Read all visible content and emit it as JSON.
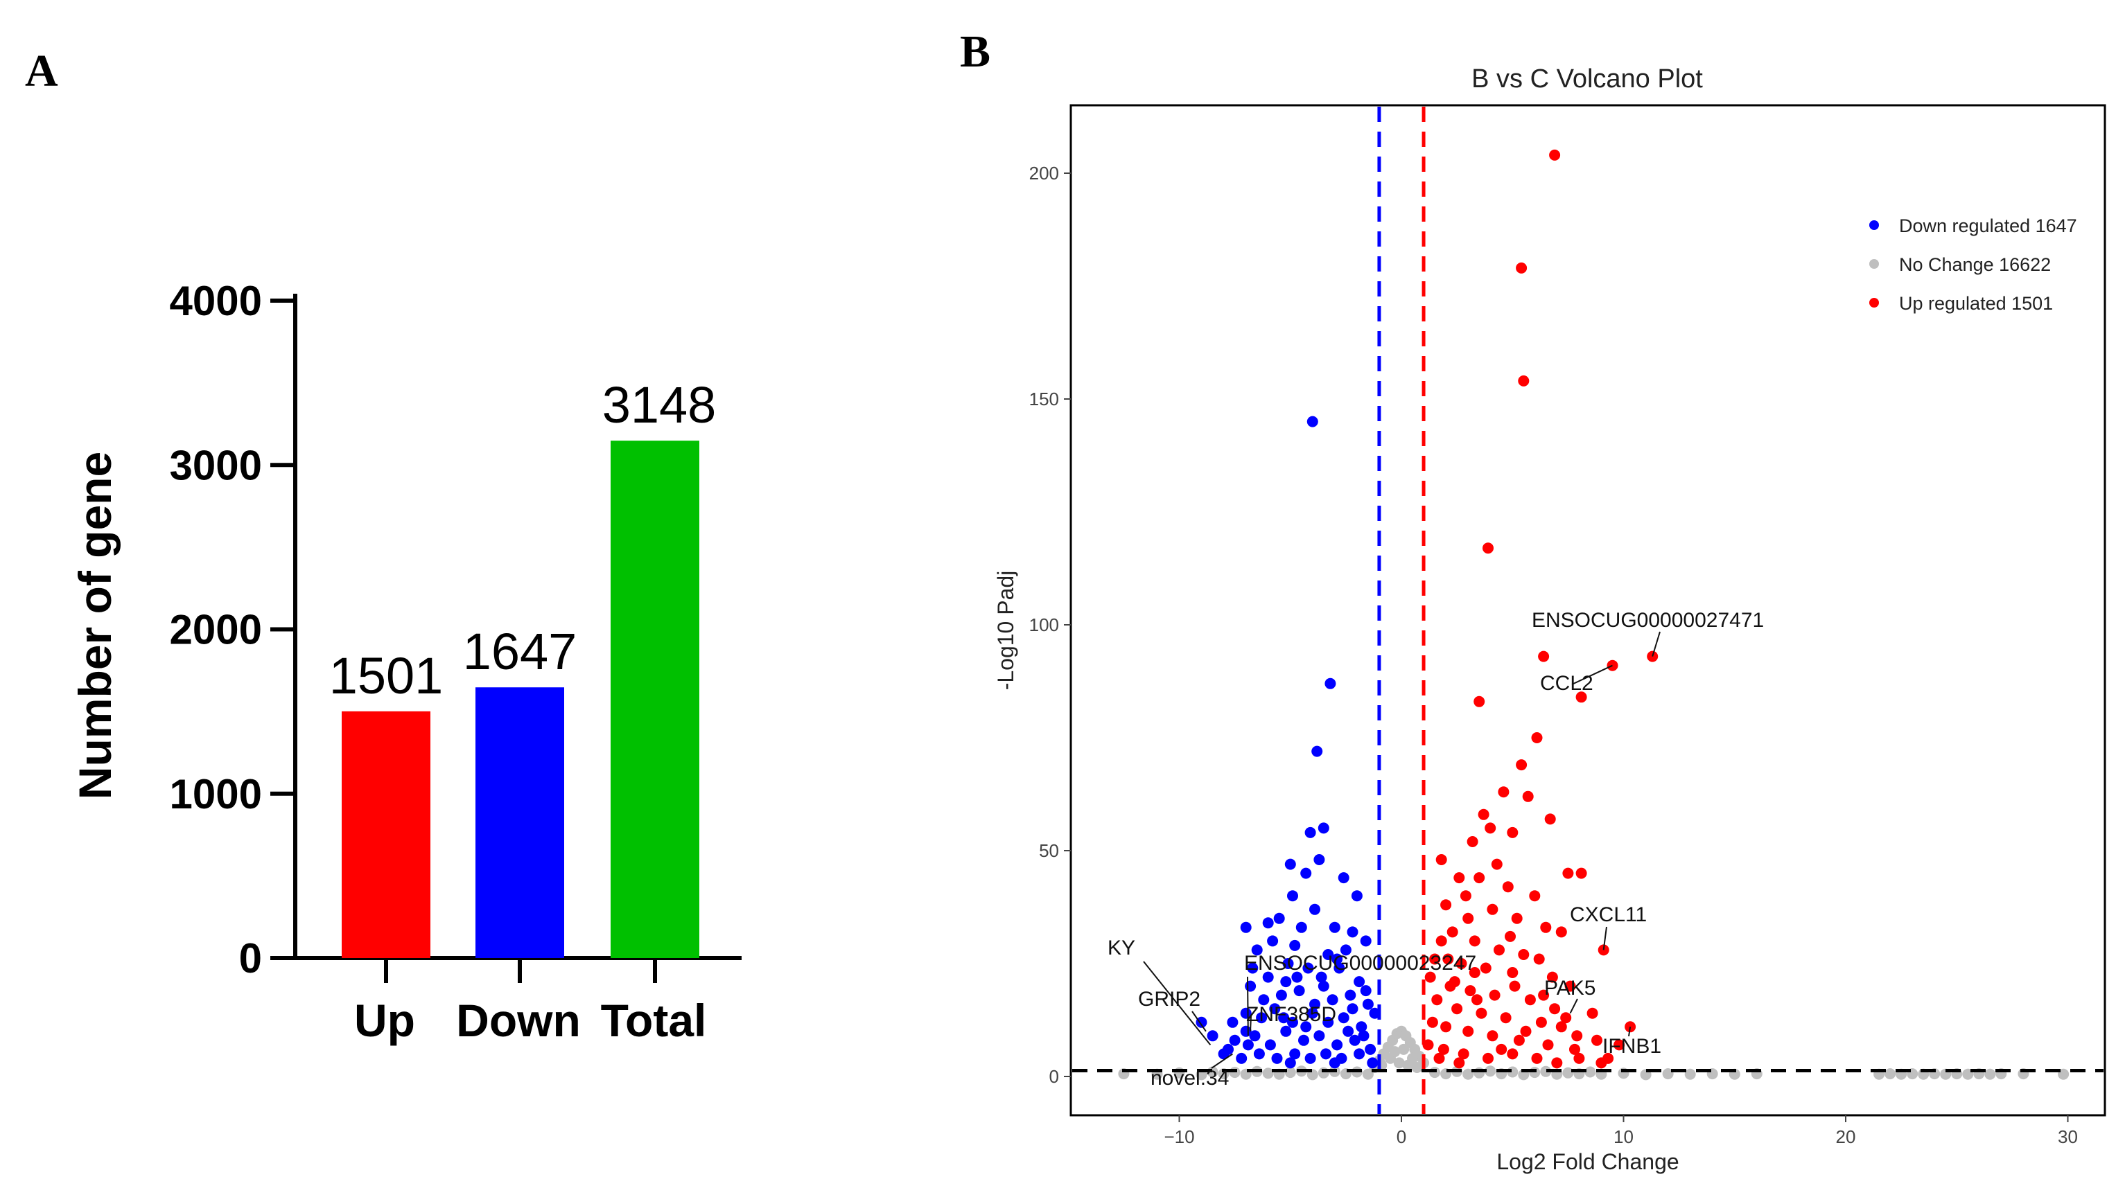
{
  "chart_data": [
    {
      "panel": "A",
      "type": "bar",
      "categories": [
        "Up",
        "Down",
        "Total"
      ],
      "values": [
        1501,
        1647,
        3148
      ],
      "data_labels": [
        "1501",
        "1647",
        "3148"
      ],
      "colors": [
        "#ff0000",
        "#0000ff",
        "#00c000"
      ],
      "title": "",
      "xlabel": "",
      "ylabel": "Number of gene",
      "ylim": [
        0,
        4000
      ],
      "yticks": [
        0,
        1000,
        2000,
        3000,
        4000
      ],
      "ytick_labels": [
        "0",
        "1000",
        "2000",
        "3000",
        "4000"
      ],
      "grid": false
    },
    {
      "panel": "B",
      "type": "scatter",
      "title": "B vs C Volcano Plot",
      "xlabel": "Log2 Fold Change",
      "ylabel": "-Log10 Padj",
      "xlim": [
        -14,
        33
      ],
      "ylim": [
        -10,
        215
      ],
      "xticks": [
        -10,
        0,
        10,
        20,
        30
      ],
      "xtick_labels": [
        "-10",
        "0",
        "10",
        "20",
        "30"
      ],
      "yticks": [
        0,
        50,
        100,
        150,
        200
      ],
      "ytick_labels": [
        "0",
        "50",
        "100",
        "150",
        "200"
      ],
      "thresholds": {
        "log2fc_down": -1,
        "log2fc_up": 1,
        "neg_log10_padj": 1.3
      },
      "threshold_colors": {
        "down": "#0000ff",
        "up": "#ff0000",
        "padj": "#000000"
      },
      "legend_position": "top-right",
      "series": [
        {
          "name": "Down regulated 1647",
          "color": "#0000ff",
          "points": [
            [
              -4,
              145
            ],
            [
              -3.2,
              87
            ],
            [
              -3.8,
              72
            ],
            [
              -3.5,
              55
            ],
            [
              -4.1,
              54
            ],
            [
              -5,
              47
            ],
            [
              -4.3,
              45
            ],
            [
              -3.7,
              48
            ],
            [
              -2.6,
              44
            ],
            [
              -4.9,
              40
            ],
            [
              -2,
              40
            ],
            [
              -3.9,
              37
            ],
            [
              -6,
              34
            ],
            [
              -5.5,
              35
            ],
            [
              -3,
              33
            ],
            [
              -2.2,
              32
            ],
            [
              -4.5,
              33
            ],
            [
              -7,
              33
            ],
            [
              -6.5,
              28
            ],
            [
              -5.8,
              30
            ],
            [
              -4.8,
              29
            ],
            [
              -3.3,
              27
            ],
            [
              -2.5,
              28
            ],
            [
              -1.6,
              30
            ],
            [
              -6,
              22
            ],
            [
              -5.1,
              25
            ],
            [
              -4.2,
              24
            ],
            [
              -3.6,
              22
            ],
            [
              -2.8,
              24
            ],
            [
              -1.9,
              21
            ],
            [
              -6.8,
              20
            ],
            [
              -5.4,
              18
            ],
            [
              -4.6,
              19
            ],
            [
              -3.1,
              17
            ],
            [
              -2.3,
              18
            ],
            [
              -1.5,
              16
            ],
            [
              -7,
              14
            ],
            [
              -6.3,
              13
            ],
            [
              -5.7,
              15
            ],
            [
              -4.9,
              12
            ],
            [
              -4,
              14
            ],
            [
              -3.3,
              12
            ],
            [
              -2.6,
              13
            ],
            [
              -1.8,
              11
            ],
            [
              -1.2,
              14
            ],
            [
              -7.5,
              8
            ],
            [
              -6.6,
              9
            ],
            [
              -5.9,
              7
            ],
            [
              -5.2,
              10
            ],
            [
              -4.4,
              8
            ],
            [
              -3.7,
              9
            ],
            [
              -2.9,
              7
            ],
            [
              -2.1,
              8
            ],
            [
              -1.4,
              6
            ],
            [
              -8,
              5
            ],
            [
              -7.2,
              4
            ],
            [
              -6.4,
              5
            ],
            [
              -5.6,
              4
            ],
            [
              -4.8,
              5
            ],
            [
              -4.1,
              4
            ],
            [
              -3.4,
              5
            ],
            [
              -2.7,
              4
            ],
            [
              -1.9,
              5
            ],
            [
              -1.3,
              3
            ],
            [
              -7.8,
              6
            ],
            [
              -6.9,
              7
            ],
            [
              -5,
              3
            ],
            [
              -3,
              3
            ],
            [
              -2.4,
              10
            ],
            [
              -1.7,
              9
            ],
            [
              -4.3,
              11
            ],
            [
              -5.3,
              13
            ],
            [
              -3.9,
              16
            ],
            [
              -2.2,
              15
            ],
            [
              -1.6,
              19
            ],
            [
              -4.7,
              22
            ],
            [
              -3.5,
              20
            ],
            [
              -2.9,
              26
            ],
            [
              -5.2,
              21
            ],
            [
              -6.2,
              17
            ],
            [
              -7,
              10
            ],
            [
              -8.5,
              9
            ],
            [
              -9,
              12
            ],
            [
              -7.6,
              12
            ],
            [
              -6.7,
              24
            ]
          ]
        },
        {
          "name": "No Change 16622",
          "color": "#bfbfbf",
          "points": [
            [
              -12.5,
              0.6
            ],
            [
              -11,
              0.5
            ],
            [
              -10,
              0.8
            ],
            [
              -9,
              0.4
            ],
            [
              -8.5,
              1.0
            ],
            [
              -8,
              0.6
            ],
            [
              -7.5,
              0.9
            ],
            [
              -7,
              0.5
            ],
            [
              -6.5,
              1.1
            ],
            [
              -6,
              0.7
            ],
            [
              -5.5,
              0.5
            ],
            [
              -5,
              0.9
            ],
            [
              -4.5,
              1.2
            ],
            [
              -4,
              0.4
            ],
            [
              -3.5,
              0.8
            ],
            [
              -3,
              1.1
            ],
            [
              -2.5,
              0.6
            ],
            [
              -2,
              1.0
            ],
            [
              -1.5,
              0.5
            ],
            [
              -1.2,
              2.0
            ],
            [
              -1,
              3.5
            ],
            [
              -0.8,
              5.0
            ],
            [
              -0.6,
              6.5
            ],
            [
              -0.4,
              8.0
            ],
            [
              -0.2,
              9.5
            ],
            [
              0,
              10.0
            ],
            [
              0.2,
              9.0
            ],
            [
              0.4,
              7.5
            ],
            [
              0.6,
              6.0
            ],
            [
              0.8,
              4.5
            ],
            [
              1,
              3.0
            ],
            [
              -0.9,
              2.5
            ],
            [
              -0.5,
              4.0
            ],
            [
              -0.1,
              3.0
            ],
            [
              0.3,
              2.5
            ],
            [
              0.7,
              2.0
            ],
            [
              0.1,
              6.0
            ],
            [
              -0.3,
              5.5
            ],
            [
              0.5,
              4.0
            ],
            [
              1.5,
              0.9
            ],
            [
              2,
              0.6
            ],
            [
              2.5,
              1.1
            ],
            [
              3,
              0.5
            ],
            [
              3.5,
              0.8
            ],
            [
              4,
              1.2
            ],
            [
              4.5,
              0.6
            ],
            [
              5,
              1.0
            ],
            [
              5.5,
              0.4
            ],
            [
              6,
              0.9
            ],
            [
              6.5,
              1.1
            ],
            [
              7,
              0.5
            ],
            [
              7.5,
              0.8
            ],
            [
              8,
              0.6
            ],
            [
              8.5,
              1.0
            ],
            [
              9,
              0.5
            ],
            [
              10,
              0.7
            ],
            [
              11,
              0.4
            ],
            [
              12,
              0.6
            ],
            [
              13,
              0.5
            ],
            [
              14,
              0.6
            ],
            [
              15,
              0.5
            ],
            [
              16,
              0.6
            ],
            [
              21.5,
              0.5
            ],
            [
              22,
              0.6
            ],
            [
              22.5,
              0.5
            ],
            [
              23,
              0.6
            ],
            [
              23.5,
              0.5
            ],
            [
              24,
              0.6
            ],
            [
              24.5,
              0.5
            ],
            [
              25,
              0.6
            ],
            [
              25.5,
              0.5
            ],
            [
              26,
              0.6
            ],
            [
              26.5,
              0.5
            ],
            [
              27,
              0.6
            ],
            [
              28,
              0.6
            ],
            [
              29.8,
              0.5
            ]
          ]
        },
        {
          "name": "Up regulated 1501",
          "color": "#ff0000",
          "points": [
            [
              6.9,
              204
            ],
            [
              5.4,
              179
            ],
            [
              5.5,
              154
            ],
            [
              3.9,
              117
            ],
            [
              6.4,
              93
            ],
            [
              11.3,
              93
            ],
            [
              9.5,
              91
            ],
            [
              3.5,
              83
            ],
            [
              8.1,
              84
            ],
            [
              6.1,
              75
            ],
            [
              5.4,
              69
            ],
            [
              4.6,
              63
            ],
            [
              5.7,
              62
            ],
            [
              4,
              55
            ],
            [
              6.7,
              57
            ],
            [
              5,
              54
            ],
            [
              3.2,
              52
            ],
            [
              7.5,
              45
            ],
            [
              8.1,
              45
            ],
            [
              2.6,
              44
            ],
            [
              3.5,
              44
            ],
            [
              4.8,
              42
            ],
            [
              6,
              40
            ],
            [
              2,
              38
            ],
            [
              4.1,
              37
            ],
            [
              5.2,
              35
            ],
            [
              3,
              35
            ],
            [
              6.5,
              33
            ],
            [
              7.2,
              32
            ],
            [
              2.3,
              32
            ],
            [
              9.1,
              28
            ],
            [
              1.8,
              30
            ],
            [
              3.3,
              30
            ],
            [
              4.4,
              28
            ],
            [
              5.5,
              27
            ],
            [
              6.2,
              26
            ],
            [
              1.5,
              26
            ],
            [
              2.7,
              25
            ],
            [
              3.8,
              24
            ],
            [
              5,
              23
            ],
            [
              6.8,
              22
            ],
            [
              7.6,
              20
            ],
            [
              1.3,
              22
            ],
            [
              2.2,
              20
            ],
            [
              3.1,
              19
            ],
            [
              4.2,
              18
            ],
            [
              5.8,
              17
            ],
            [
              1.6,
              17
            ],
            [
              2.5,
              15
            ],
            [
              3.6,
              14
            ],
            [
              4.7,
              13
            ],
            [
              6.3,
              12
            ],
            [
              7.2,
              11
            ],
            [
              8.6,
              14
            ],
            [
              1.4,
              12
            ],
            [
              2,
              11
            ],
            [
              3,
              10
            ],
            [
              4.1,
              9
            ],
            [
              5.3,
              8
            ],
            [
              6.6,
              7
            ],
            [
              7.8,
              6
            ],
            [
              8.8,
              8
            ],
            [
              9.8,
              7
            ],
            [
              10.3,
              11
            ],
            [
              1.2,
              7
            ],
            [
              1.9,
              6
            ],
            [
              2.8,
              5
            ],
            [
              3.9,
              4
            ],
            [
              5,
              5
            ],
            [
              6.1,
              4
            ],
            [
              7,
              3
            ],
            [
              8,
              4
            ],
            [
              9,
              3
            ],
            [
              1.7,
              4
            ],
            [
              2.6,
              3
            ],
            [
              4.5,
              6
            ],
            [
              5.6,
              10
            ],
            [
              3.4,
              17
            ],
            [
              2.1,
              26
            ],
            [
              4.9,
              31
            ],
            [
              6.9,
              15
            ],
            [
              7.9,
              9
            ],
            [
              2.9,
              40
            ],
            [
              4.3,
              47
            ],
            [
              1.8,
              48
            ],
            [
              3.7,
              58
            ],
            [
              2.4,
              21
            ],
            [
              3.3,
              23
            ],
            [
              5.1,
              20
            ],
            [
              6.4,
              18
            ],
            [
              7.4,
              13
            ],
            [
              9.3,
              4
            ]
          ]
        }
      ],
      "annotations": [
        {
          "label": "KY",
          "x": -8.6,
          "y": 7
        },
        {
          "label": "GRIP2",
          "x": -8.8,
          "y": 10
        },
        {
          "label": "ENSOCUG00000023247",
          "x": -6.9,
          "y": 9
        },
        {
          "label": "ZNF385D",
          "x": -6.8,
          "y": 10
        },
        {
          "label": "novel.34",
          "x": -7.6,
          "y": 5
        },
        {
          "label": "ENSOCUG00000027471",
          "x": 11.3,
          "y": 93
        },
        {
          "label": "CCL2",
          "x": 9.5,
          "y": 91
        },
        {
          "label": "CXCL11",
          "x": 9.1,
          "y": 28
        },
        {
          "label": "PAK5",
          "x": 7.6,
          "y": 14
        },
        {
          "label": "IFNB1",
          "x": 10.3,
          "y": 11
        }
      ]
    }
  ]
}
